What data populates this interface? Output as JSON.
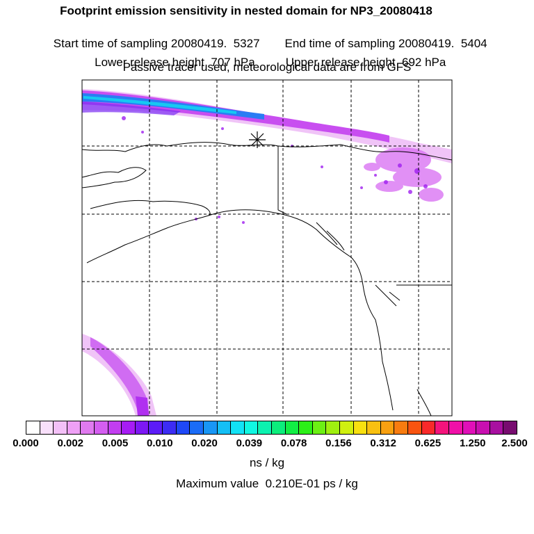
{
  "header": {
    "title": "Footprint emission sensitivity in nested domain for NP3_20080418",
    "start_label": "Start time of sampling 20080419.  5327",
    "end_label": "End time of sampling 20080419.  5404",
    "lower_label": "Lower release height  707 hPa",
    "upper_label": "Upper release height  692 hPa",
    "note": "Passive tracer used, meteorological data are from GFS"
  },
  "colorbar": {
    "ticks": [
      "0.000",
      "0.002",
      "0.005",
      "0.010",
      "0.020",
      "0.039",
      "0.078",
      "0.156",
      "0.312",
      "0.625",
      "1.250",
      "2.500"
    ],
    "colors": [
      "#ffffff",
      "#f9e0fb",
      "#f3c0f7",
      "#eea0f5",
      "#e07aef",
      "#d45ef0",
      "#c23ef0",
      "#a61cf4",
      "#7d18f4",
      "#5c1cf7",
      "#3c2cf4",
      "#1e48f7",
      "#1a6cf7",
      "#1896f5",
      "#14bff5",
      "#12e2f5",
      "#10f7e2",
      "#0cf2b0",
      "#0cee7c",
      "#12ee44",
      "#2cf018",
      "#6cf014",
      "#a0f010",
      "#d0f010",
      "#f8e010",
      "#f8c010",
      "#f8a010",
      "#f87c10",
      "#f85410",
      "#f82a2a",
      "#f4147c",
      "#f010a8",
      "#e010b8",
      "#c810b0",
      "#a810a0",
      "#780c70"
    ],
    "units": "ns / kg",
    "max_value": "Maximum value  0.210E-01 ps / kg"
  }
}
